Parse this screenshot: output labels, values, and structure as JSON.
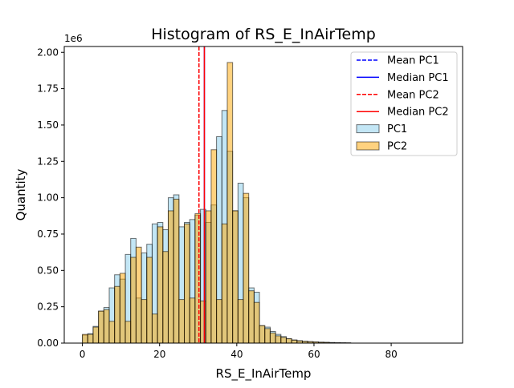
{
  "chart_data": {
    "type": "bar",
    "title": "Histogram of RS_E_InAirTemp",
    "xlabel": "RS_E_InAirTemp",
    "ylabel": "Quantity",
    "y_scale_label": "1e6",
    "xlim": [
      -4.7,
      98.5
    ],
    "ylim": [
      0,
      2.04
    ],
    "x_ticks": [
      0,
      20,
      40,
      60,
      80
    ],
    "x_tick_labels": [
      "0",
      "20",
      "40",
      "60",
      "80"
    ],
    "y_ticks": [
      0,
      0.25,
      0.5,
      0.75,
      1.0,
      1.25,
      1.5,
      1.75,
      2.0
    ],
    "y_tick_labels": [
      "0.00",
      "0.25",
      "0.50",
      "0.75",
      "1.00",
      "1.25",
      "1.50",
      "1.75",
      "2.00"
    ],
    "grid": false,
    "legend_position": "top-right",
    "series": [
      {
        "name": "PC1",
        "color": "#87ceeb",
        "opacity": 0.5,
        "edge_color": "#000000",
        "bin_edges": [
          0,
          1.39,
          2.78,
          4.17,
          5.56,
          6.95,
          8.34,
          9.73,
          11.12,
          12.51,
          13.9,
          15.29,
          16.68,
          18.07,
          19.46,
          20.85,
          22.24,
          23.63,
          25.02,
          26.41,
          27.8,
          29.19,
          30.58,
          31.97,
          33.36,
          34.75,
          36.14,
          37.53,
          38.92,
          40.31,
          41.7,
          43.09,
          44.48,
          45.87,
          47.26,
          48.65,
          50.04,
          51.43,
          52.82,
          54.21,
          55.6,
          56.99,
          58.38,
          59.77,
          61.16,
          62.55,
          63.95,
          65.34,
          66.73,
          68.12,
          69.51
        ],
        "values": [
          0.055,
          0.065,
          0.115,
          0.22,
          0.245,
          0.38,
          0.47,
          0.44,
          0.61,
          0.72,
          0.31,
          0.62,
          0.68,
          0.82,
          0.83,
          0.78,
          1.0,
          1.02,
          0.8,
          0.83,
          0.85,
          0.88,
          0.92,
          0.83,
          0.95,
          1.42,
          1.6,
          1.32,
          0.91,
          1.1,
          1.0,
          0.38,
          0.35,
          0.12,
          0.11,
          0.08,
          0.06,
          0.045,
          0.03,
          0.022,
          0.017,
          0.013,
          0.01,
          0.008,
          0.006,
          0.005,
          0.004,
          0.003,
          0.002,
          0.002
        ]
      },
      {
        "name": "PC2",
        "color": "#ffa500",
        "opacity": 0.5,
        "edge_color": "#000000",
        "bin_edges": [
          0,
          1.39,
          2.78,
          4.17,
          5.56,
          6.95,
          8.34,
          9.73,
          11.12,
          12.51,
          13.9,
          15.29,
          16.68,
          18.07,
          19.46,
          20.85,
          22.24,
          23.63,
          25.02,
          26.41,
          27.8,
          29.19,
          30.58,
          31.97,
          33.36,
          34.75,
          36.14,
          37.53,
          38.92,
          40.31,
          41.7,
          43.09,
          44.48,
          45.87,
          47.26,
          48.65,
          50.04,
          51.43,
          52.82,
          54.21,
          55.6,
          56.99,
          58.38,
          59.77,
          61.16,
          62.55,
          63.95,
          65.34,
          66.73,
          68.12,
          69.51
        ],
        "values": [
          0.06,
          0.06,
          0.11,
          0.22,
          0.23,
          0.15,
          0.39,
          0.48,
          0.15,
          0.59,
          0.66,
          0.3,
          0.59,
          0.2,
          0.8,
          0.63,
          0.91,
          0.99,
          0.3,
          0.82,
          0.31,
          0.89,
          0.29,
          0.91,
          1.33,
          0.3,
          0.82,
          1.93,
          0.91,
          0.3,
          1.03,
          0.36,
          0.28,
          0.12,
          0.1,
          0.07,
          0.05,
          0.04,
          0.03,
          0.02,
          0.015,
          0.012,
          0.01,
          0.008,
          0.006,
          0.005,
          0.003,
          0.002,
          0.002,
          0.001
        ]
      }
    ],
    "reference_lines": [
      {
        "name": "Mean PC1",
        "x": 30.2,
        "color": "#0000ff",
        "style": "dashed"
      },
      {
        "name": "Median PC1",
        "x": 31.6,
        "color": "#0000ff",
        "style": "solid"
      },
      {
        "name": "Mean PC2",
        "x": 30.2,
        "color": "#ff0000",
        "style": "dashed"
      },
      {
        "name": "Median PC2",
        "x": 31.6,
        "color": "#ff0000",
        "style": "solid"
      }
    ]
  }
}
